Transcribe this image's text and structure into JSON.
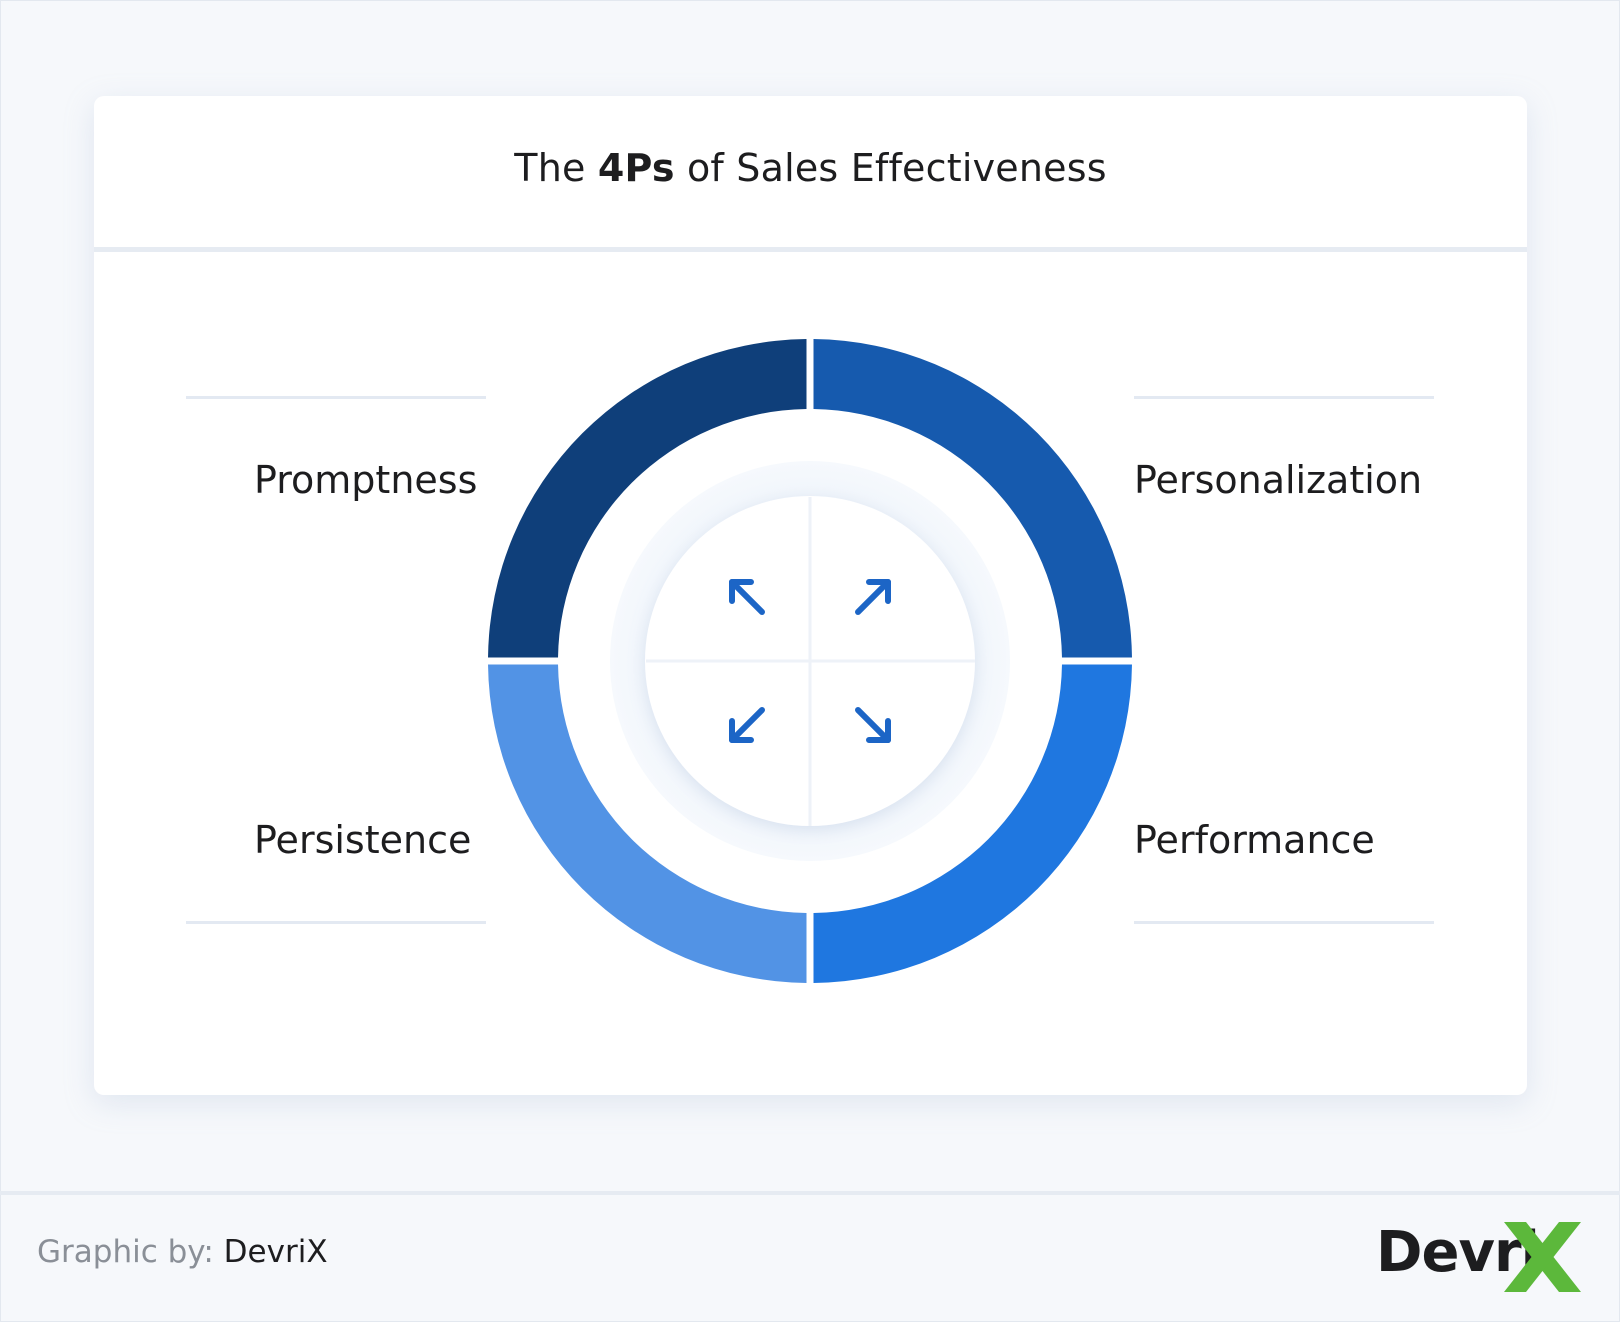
{
  "title": {
    "prefix": "The",
    "bold": "4Ps",
    "suffix": "of Sales Effectiveness"
  },
  "quadrants": [
    {
      "label": "Promptness",
      "color": "#0f3f7a",
      "arrow": "arrow-up-left-icon"
    },
    {
      "label": "Personalization",
      "color": "#165aae",
      "arrow": "arrow-up-right-icon"
    },
    {
      "label": "Performance",
      "color": "#1f77e0",
      "arrow": "arrow-down-right-icon"
    },
    {
      "label": "Persistence",
      "color": "#5293e5",
      "arrow": "arrow-down-left-icon"
    }
  ],
  "arrow_color": "#1c65c6",
  "footer": {
    "credit_prefix": "Graphic by:",
    "credit_brand": "DevriX",
    "logo_text": "Devri",
    "logo_x_color": "#5cb83b"
  }
}
